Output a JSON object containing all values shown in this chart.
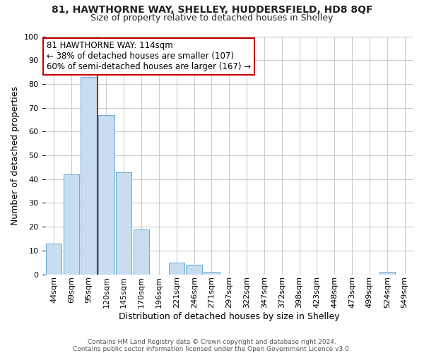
{
  "title1": "81, HAWTHORNE WAY, SHELLEY, HUDDERSFIELD, HD8 8QF",
  "title2": "Size of property relative to detached houses in Shelley",
  "xlabel": "Distribution of detached houses by size in Shelley",
  "ylabel": "Number of detached properties",
  "bar_labels": [
    "44sqm",
    "69sqm",
    "95sqm",
    "120sqm",
    "145sqm",
    "170sqm",
    "196sqm",
    "221sqm",
    "246sqm",
    "271sqm",
    "297sqm",
    "322sqm",
    "347sqm",
    "372sqm",
    "398sqm",
    "423sqm",
    "448sqm",
    "473sqm",
    "499sqm",
    "524sqm",
    "549sqm"
  ],
  "bar_values": [
    13,
    42,
    83,
    67,
    43,
    19,
    0,
    5,
    4,
    1,
    0,
    0,
    0,
    0,
    0,
    0,
    0,
    0,
    0,
    1,
    0
  ],
  "bar_color": "#c8ddf0",
  "bar_edge_color": "#6aaad4",
  "ylim": [
    0,
    100
  ],
  "yticks": [
    0,
    10,
    20,
    30,
    40,
    50,
    60,
    70,
    80,
    90,
    100
  ],
  "vline_x": 2.5,
  "vline_color": "#cc0000",
  "annotation_text": "81 HAWTHORNE WAY: 114sqm\n← 38% of detached houses are smaller (107)\n60% of semi-detached houses are larger (167) →",
  "annotation_box_color": "#ffffff",
  "annotation_box_edge": "#cc0000",
  "footer1": "Contains HM Land Registry data © Crown copyright and database right 2024.",
  "footer2": "Contains public sector information licensed under the Open Government Licence v3.0.",
  "bg_color": "#ffffff",
  "grid_color": "#cccccc",
  "title1_fontsize": 10,
  "title2_fontsize": 9,
  "ylabel_fontsize": 9,
  "xlabel_fontsize": 9,
  "tick_fontsize": 8,
  "annot_fontsize": 8.5
}
